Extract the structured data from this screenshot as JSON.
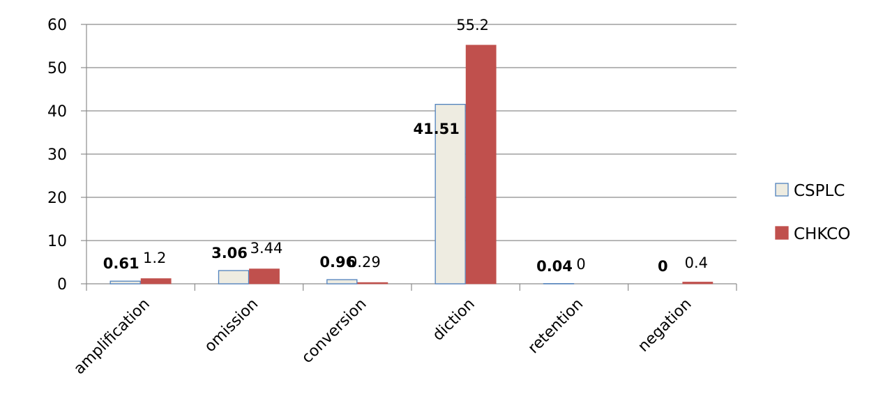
{
  "chart_data": {
    "type": "bar",
    "categories": [
      "amplification",
      "omission",
      "conversion",
      "diction",
      "retention",
      "negation"
    ],
    "series": [
      {
        "name": "CSPLC",
        "values": [
          0.61,
          3.06,
          0.96,
          41.51,
          0.04,
          0
        ],
        "labels": [
          "0.61",
          "3.06",
          "0.96",
          "41.51",
          "0.04",
          "0"
        ],
        "fill": "#EEECE1",
        "stroke": "#4F81BD"
      },
      {
        "name": "CHKCO",
        "values": [
          1.2,
          3.44,
          0.29,
          55.2,
          0,
          0.4
        ],
        "labels": [
          "1.2",
          "3.44",
          "0.29",
          "55.2",
          "0",
          "0.4"
        ],
        "fill": "#C0504D",
        "stroke": "#C0504D"
      }
    ],
    "yticks": [
      "0",
      "10",
      "20",
      "30",
      "40",
      "50",
      "60"
    ],
    "ylim": [
      0,
      60
    ],
    "grid": true,
    "legend_position": "right",
    "title": "",
    "xlabel": "",
    "ylabel": ""
  }
}
